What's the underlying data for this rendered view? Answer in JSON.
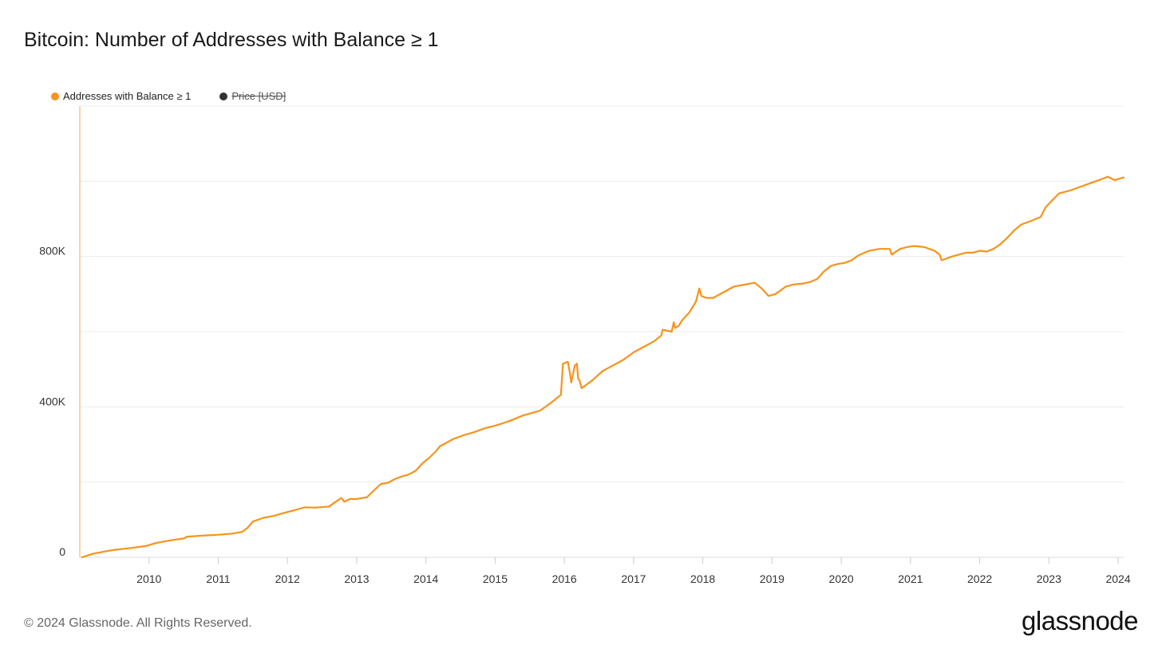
{
  "header": {
    "title": "Bitcoin: Number of Addresses with Balance ≥ 1"
  },
  "legend": {
    "items": [
      {
        "label": "Addresses with Balance ≥ 1",
        "color": "#f7931a",
        "enabled": true
      },
      {
        "label": "Price [USD]",
        "color": "#333333",
        "enabled": false
      }
    ]
  },
  "footer": {
    "copyright": "© 2024 Glassnode. All Rights Reserved.",
    "logo": "glassnode"
  },
  "chart_data": {
    "type": "line",
    "title": "Bitcoin: Number of Addresses with Balance ≥ 1",
    "xlabel": "",
    "ylabel": "",
    "xlim": [
      2009.0,
      2024.08
    ],
    "ylim": [
      0,
      1200000
    ],
    "yticks": [
      {
        "value": 0,
        "label": "0"
      },
      {
        "value": 400000,
        "label": "400K"
      },
      {
        "value": 800000,
        "label": "800K"
      }
    ],
    "ygrid": [
      0,
      200000,
      400000,
      600000,
      800000,
      1000000,
      1200000
    ],
    "xticks": [
      {
        "value": 2010,
        "label": "2010"
      },
      {
        "value": 2011,
        "label": "2011"
      },
      {
        "value": 2012,
        "label": "2012"
      },
      {
        "value": 2013,
        "label": "2013"
      },
      {
        "value": 2014,
        "label": "2014"
      },
      {
        "value": 2015,
        "label": "2015"
      },
      {
        "value": 2016,
        "label": "2016"
      },
      {
        "value": 2017,
        "label": "2017"
      },
      {
        "value": 2018,
        "label": "2018"
      },
      {
        "value": 2019,
        "label": "2019"
      },
      {
        "value": 2020,
        "label": "2020"
      },
      {
        "value": 2021,
        "label": "2021"
      },
      {
        "value": 2022,
        "label": "2022"
      },
      {
        "value": 2023,
        "label": "2023"
      },
      {
        "value": 2024,
        "label": "2024"
      }
    ],
    "grid": true,
    "series": [
      {
        "name": "Addresses with Balance ≥ 1",
        "color": "#f7931a",
        "x": [
          2009.03,
          2009.2,
          2009.5,
          2009.75,
          2009.95,
          2010.1,
          2010.3,
          2010.5,
          2010.55,
          2010.8,
          2011.0,
          2011.2,
          2011.35,
          2011.42,
          2011.5,
          2011.65,
          2011.8,
          2011.95,
          2012.1,
          2012.25,
          2012.4,
          2012.6,
          2012.7,
          2012.78,
          2012.82,
          2012.9,
          2013.0,
          2013.15,
          2013.25,
          2013.35,
          2013.45,
          2013.55,
          2013.65,
          2013.75,
          2013.85,
          2013.95,
          2014.05,
          2014.15,
          2014.2,
          2014.25,
          2014.4,
          2014.55,
          2014.7,
          2014.85,
          2015.0,
          2015.2,
          2015.4,
          2015.55,
          2015.65,
          2015.8,
          2015.95,
          2015.98,
          2016.05,
          2016.08,
          2016.1,
          2016.15,
          2016.18,
          2016.2,
          2016.22,
          2016.25,
          2016.4,
          2016.55,
          2016.7,
          2016.85,
          2017.0,
          2017.15,
          2017.3,
          2017.4,
          2017.42,
          2017.55,
          2017.58,
          2017.6,
          2017.65,
          2017.7,
          2017.8,
          2017.9,
          2017.95,
          2017.98,
          2018.05,
          2018.15,
          2018.3,
          2018.45,
          2018.6,
          2018.75,
          2018.85,
          2018.95,
          2019.05,
          2019.2,
          2019.3,
          2019.45,
          2019.55,
          2019.65,
          2019.75,
          2019.85,
          2019.95,
          2020.05,
          2020.15,
          2020.25,
          2020.4,
          2020.55,
          2020.7,
          2020.73,
          2020.85,
          2020.95,
          2021.05,
          2021.2,
          2021.35,
          2021.42,
          2021.45,
          2021.6,
          2021.8,
          2021.9,
          2022.0,
          2022.1,
          2022.2,
          2022.3,
          2022.4,
          2022.5,
          2022.6,
          2022.75,
          2022.88,
          2022.95,
          2023.05,
          2023.15,
          2023.3,
          2023.45,
          2023.6,
          2023.75,
          2023.85,
          2023.95,
          2024.08
        ],
        "values": [
          0,
          10000,
          20000,
          25000,
          30000,
          38000,
          45000,
          50000,
          55000,
          58000,
          60000,
          63000,
          68000,
          78000,
          95000,
          105000,
          110000,
          118000,
          125000,
          133000,
          132000,
          135000,
          148000,
          158000,
          148000,
          155000,
          155000,
          160000,
          178000,
          195000,
          198000,
          208000,
          215000,
          220000,
          230000,
          250000,
          265000,
          283000,
          295000,
          300000,
          315000,
          325000,
          333000,
          343000,
          350000,
          362000,
          377000,
          385000,
          390000,
          410000,
          432000,
          515000,
          520000,
          490000,
          465000,
          510000,
          515000,
          475000,
          470000,
          450000,
          470000,
          495000,
          510000,
          525000,
          545000,
          560000,
          575000,
          590000,
          605000,
          600000,
          625000,
          610000,
          615000,
          630000,
          650000,
          680000,
          715000,
          695000,
          690000,
          690000,
          705000,
          720000,
          725000,
          730000,
          715000,
          695000,
          700000,
          720000,
          725000,
          728000,
          732000,
          740000,
          760000,
          775000,
          780000,
          783000,
          790000,
          803000,
          815000,
          820000,
          820000,
          805000,
          820000,
          825000,
          828000,
          825000,
          815000,
          805000,
          790000,
          800000,
          810000,
          810000,
          815000,
          813000,
          820000,
          833000,
          850000,
          870000,
          885000,
          895000,
          905000,
          930000,
          950000,
          968000,
          975000,
          985000,
          995000,
          1005000,
          1012000,
          1003000,
          1010000
        ]
      }
    ]
  }
}
